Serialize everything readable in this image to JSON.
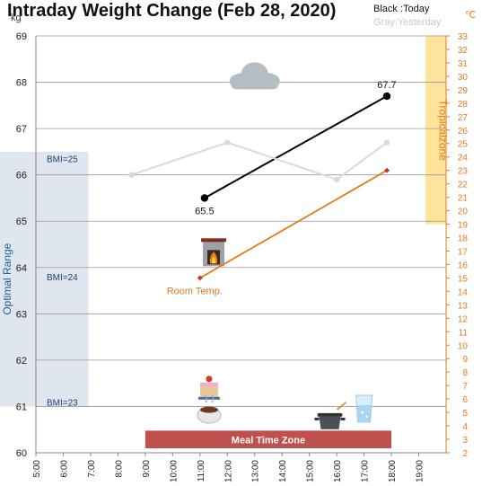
{
  "title": "Intraday Weight Change (Feb 28, 2020)",
  "legend": {
    "today": "Black :Today",
    "yesterday": "Gray:Yesterday"
  },
  "units": {
    "left": "kg",
    "right": "℃"
  },
  "colors": {
    "today": "#000000",
    "yesterday": "#d9d9d9",
    "room_temp": "#e07b20",
    "tropical_fill": "#fde49a",
    "tropical_text": "#e07b20",
    "optimal_fill": "#dfe6ee",
    "optimal_text": "#1f5f9a",
    "meal_fill": "#c0504d",
    "meal_text": "#ffffff",
    "bmi_text": "#1f3f7a",
    "grid": "#999999",
    "right_axis": "#e07b20"
  },
  "chart_data": {
    "type": "line",
    "x_ticks": [
      "5:00",
      "6:00",
      "7:00",
      "8:00",
      "9:00",
      "10:00",
      "11:00",
      "12:00",
      "13:00",
      "14:00",
      "15:00",
      "16:00",
      "17:00",
      "18:00",
      "19:00"
    ],
    "xlim": [
      "5:00",
      "20:00"
    ],
    "ylim_left": [
      60,
      69
    ],
    "ylim_right": [
      2,
      33
    ],
    "y_ticks_left": [
      60,
      61,
      62,
      63,
      64,
      65,
      66,
      67,
      68,
      69
    ],
    "y_ticks_right": [
      2,
      3,
      4,
      5,
      6,
      7,
      8,
      9,
      10,
      11,
      12,
      13,
      14,
      15,
      16,
      17,
      18,
      19,
      20,
      21,
      22,
      23,
      24,
      25,
      26,
      27,
      28,
      29,
      30,
      31,
      32,
      33
    ],
    "grid": "horizontal",
    "series": [
      {
        "name": "Today",
        "axis": "left",
        "x": [
          "11:10",
          "17:50"
        ],
        "y": [
          65.5,
          67.7
        ],
        "point_labels": [
          "65.5",
          "67.7"
        ]
      },
      {
        "name": "Yesterday",
        "axis": "left",
        "x": [
          "8:30",
          "12:00",
          "16:00",
          "17:50"
        ],
        "y": [
          66.0,
          66.7,
          65.9,
          66.7
        ]
      },
      {
        "name": "Room Temp.",
        "axis": "right",
        "x": [
          "11:00",
          "17:50"
        ],
        "y": [
          15.0,
          23.0
        ]
      }
    ],
    "bands": {
      "tropical": {
        "label": "Tropicalzone",
        "axis": "right",
        "from": 19,
        "to": 33,
        "x_from": "19:15",
        "x_to": "20:00"
      },
      "optimal": {
        "label": "Optimal Range",
        "axis": "left",
        "from": 61,
        "to": 66.5,
        "x_from": "5:00",
        "x_to": "6:55"
      },
      "meal": {
        "label": "Meal Time Zone",
        "x_from": "9:00",
        "x_to": "18:00",
        "y_from": 60,
        "y_to": 60.4
      }
    },
    "bmi_labels": [
      {
        "label": "BMI=25",
        "y": 66.35
      },
      {
        "label": "BMI=24",
        "y": 63.8
      },
      {
        "label": "BMI=23",
        "y": 61.1
      }
    ],
    "icons": [
      {
        "name": "cloud-icon",
        "x": "13:00",
        "y": 68.1
      },
      {
        "name": "fireplace-icon",
        "x": "11:30",
        "y": 64.3
      },
      {
        "name": "cake-icon",
        "x": "11:20",
        "y": 61.4
      },
      {
        "name": "coffee-icon",
        "x": "11:20",
        "y": 60.85
      },
      {
        "name": "cooking-pot-icon",
        "x": "15:45",
        "y": 60.7
      },
      {
        "name": "water-glass-icon",
        "x": "17:00",
        "y": 60.95
      }
    ]
  }
}
